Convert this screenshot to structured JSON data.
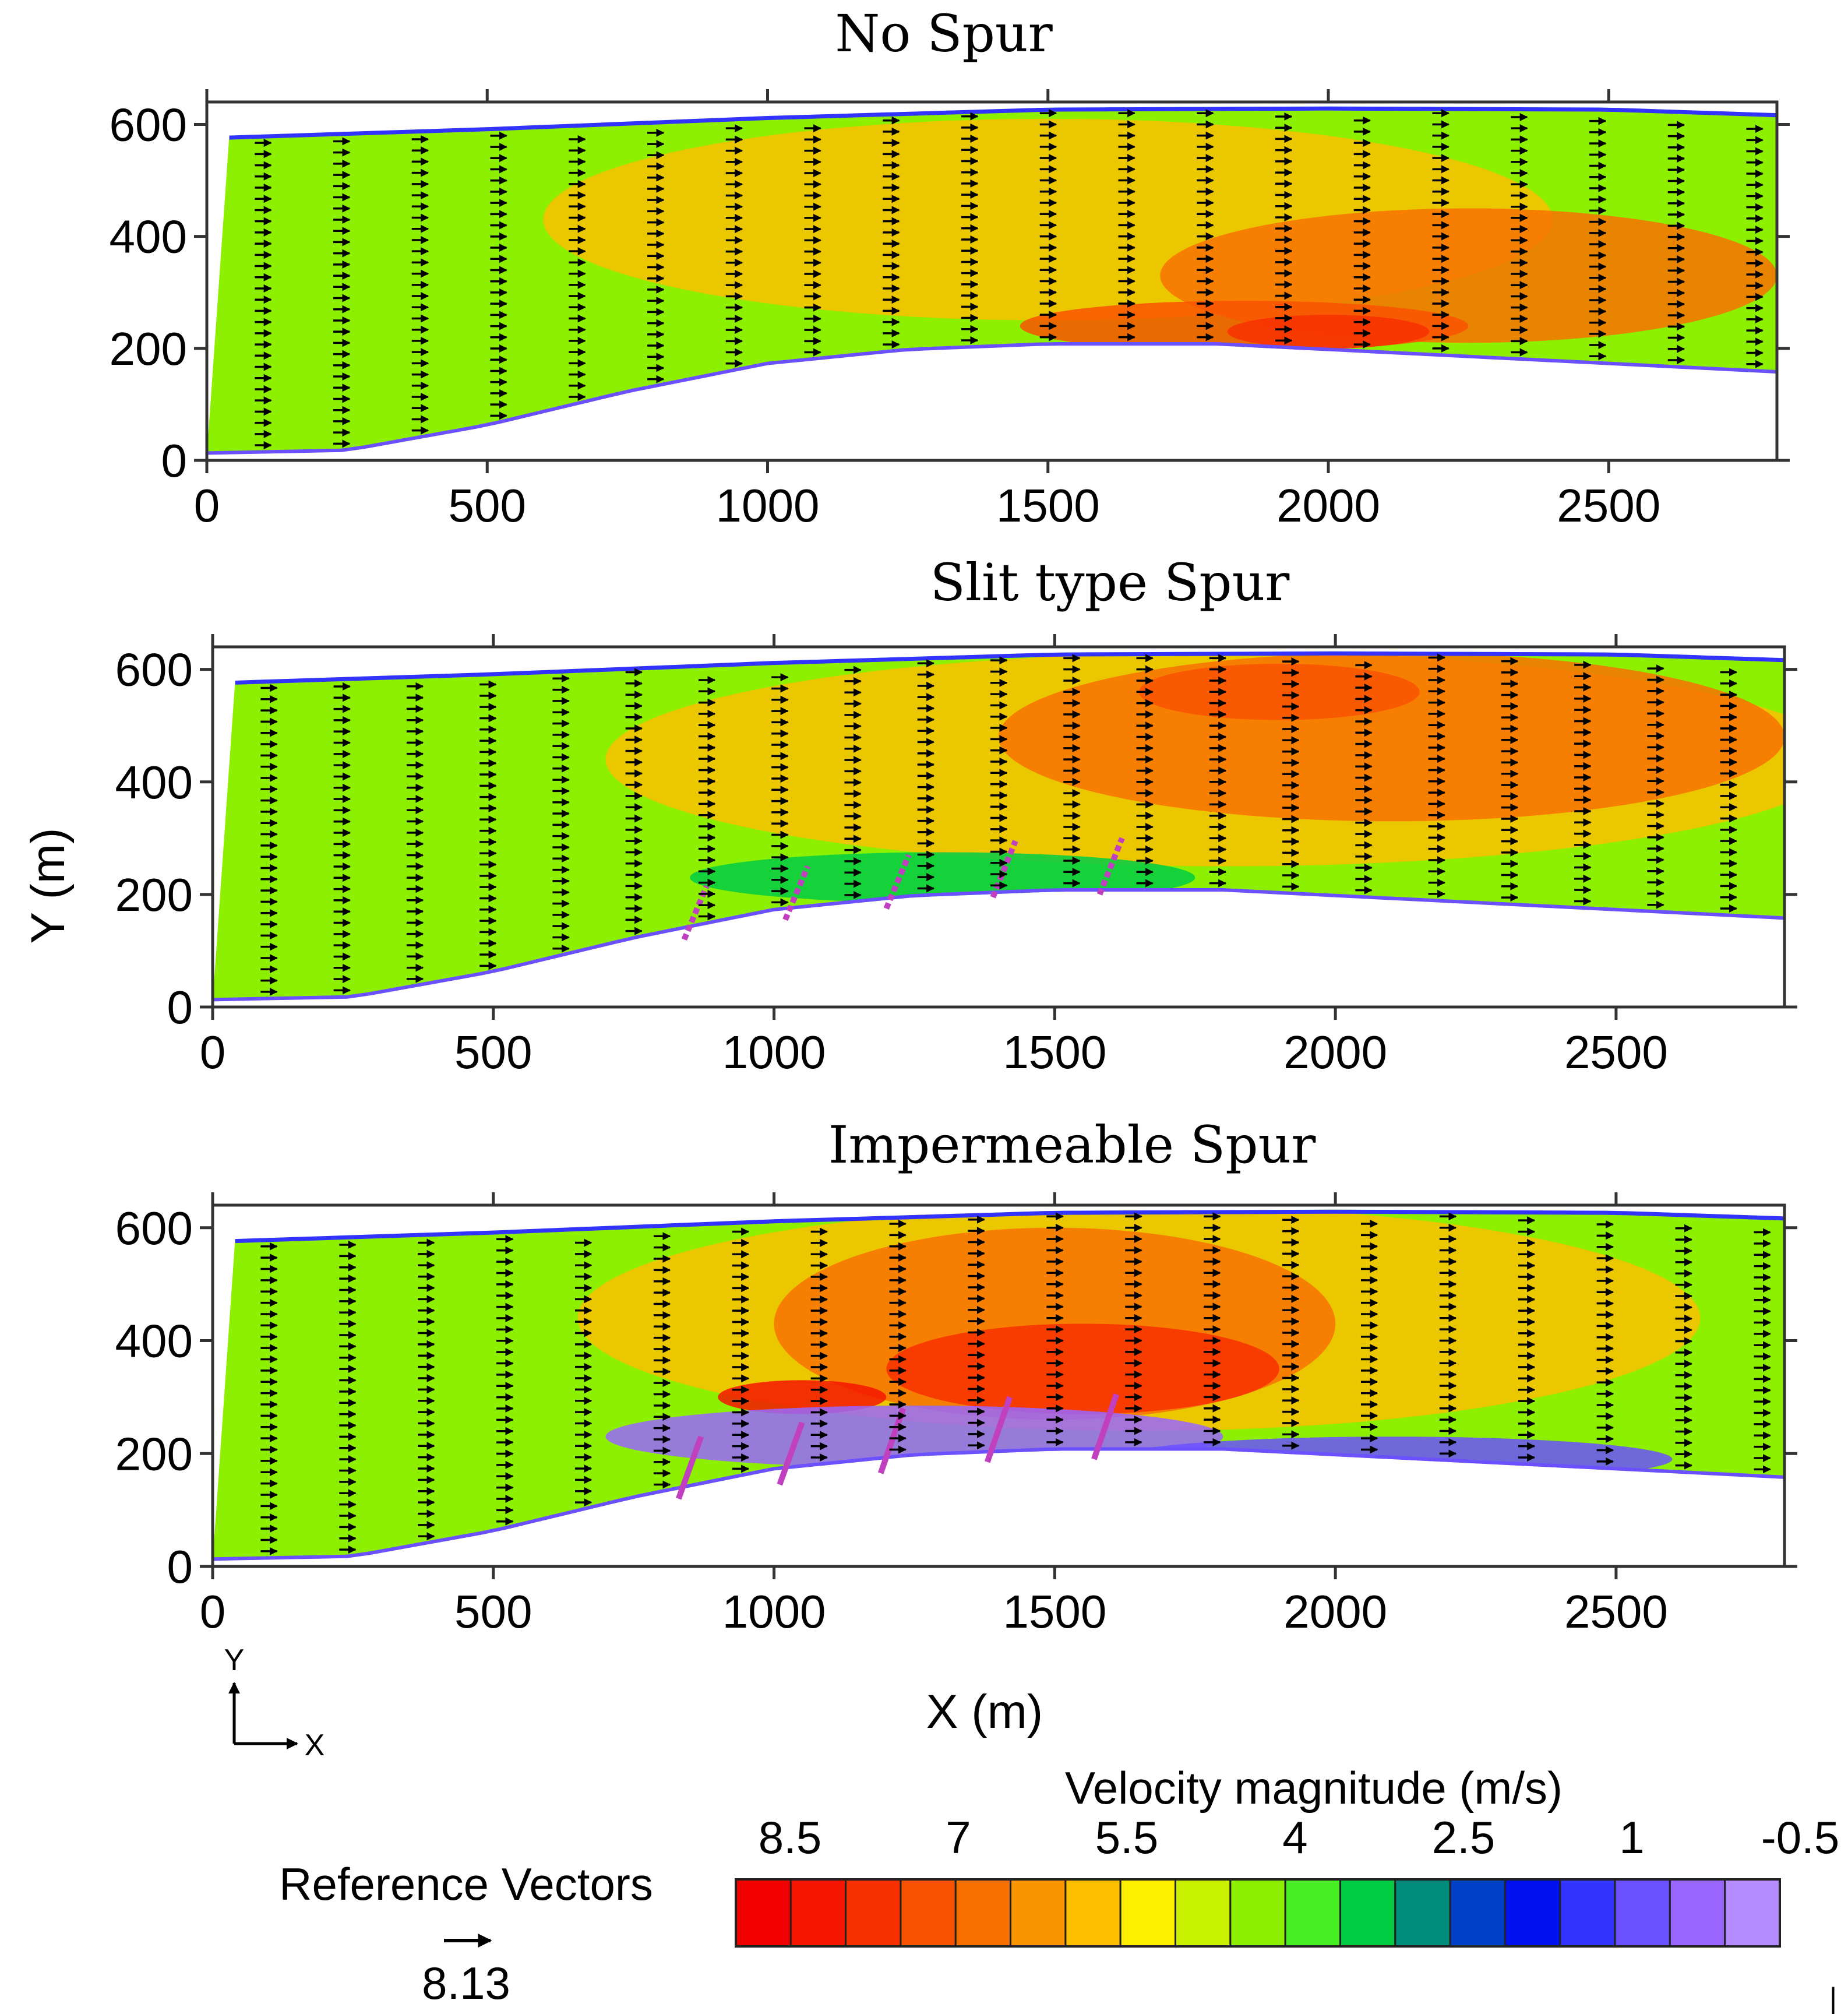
{
  "figure": {
    "y_axis_label": "Y (m)",
    "x_axis_label": "X (m)",
    "compass": {
      "y_label": "Y",
      "x_label": "X"
    },
    "colorbar": {
      "title": "Velocity magnitude (m/s)",
      "tick_labels": [
        "8.5",
        "7",
        "5.5",
        "4",
        "2.5",
        "1",
        "-0.5"
      ],
      "colors": [
        "#f20000",
        "#f51500",
        "#f83000",
        "#f95200",
        "#f87100",
        "#f99500",
        "#fcc000",
        "#fff000",
        "#c8f200",
        "#8cf000",
        "#44ee20",
        "#00cc44",
        "#008c7a",
        "#0040c8",
        "#0010f0",
        "#3333ff",
        "#6a50ff",
        "#9966ff",
        "#b48cff"
      ]
    },
    "reference_vector": {
      "label": "Reference Vectors",
      "value": "8.13"
    }
  },
  "chart_data": [
    {
      "type": "contour+vector",
      "title": "No Spur",
      "xlim": [
        0,
        2800
      ],
      "ylim": [
        0,
        640
      ],
      "xticks": [
        "0",
        "500",
        "1000",
        "1500",
        "2000",
        "2500"
      ],
      "yticks": [
        "0",
        "200",
        "400",
        "600"
      ],
      "channel_top": [
        [
          40,
          580
        ],
        [
          500,
          595
        ],
        [
          1000,
          615
        ],
        [
          1500,
          630
        ],
        [
          2000,
          632
        ],
        [
          2500,
          630
        ],
        [
          2800,
          620
        ]
      ],
      "channel_bottom": [
        [
          0,
          10
        ],
        [
          250,
          15
        ],
        [
          500,
          60
        ],
        [
          750,
          120
        ],
        [
          1000,
          170
        ],
        [
          1250,
          195
        ],
        [
          1500,
          205
        ],
        [
          1800,
          205
        ],
        [
          2100,
          190
        ],
        [
          2400,
          175
        ],
        [
          2800,
          155
        ]
      ],
      "spurs": [],
      "zones": [
        {
          "level": 5.5,
          "center": [
            1500,
            430
          ],
          "radius": [
            900,
            180
          ]
        },
        {
          "level": 6.5,
          "center": [
            2250,
            330
          ],
          "radius": [
            550,
            120
          ]
        },
        {
          "level": 7.0,
          "center": [
            1850,
            240
          ],
          "radius": [
            400,
            45
          ]
        },
        {
          "level": 7.3,
          "center": [
            2000,
            230
          ],
          "radius": [
            180,
            30
          ]
        }
      ],
      "vector_columns_x": [
        100,
        240,
        380,
        520,
        660,
        800,
        940,
        1080,
        1220,
        1360,
        1500,
        1640,
        1780,
        1920,
        2060,
        2200,
        2340,
        2480,
        2620,
        2760
      ]
    },
    {
      "type": "contour+vector",
      "title": "Slit type Spur",
      "xlim": [
        0,
        2800
      ],
      "ylim": [
        0,
        640
      ],
      "xticks": [
        "0",
        "500",
        "1000",
        "1500",
        "2000",
        "2500"
      ],
      "yticks": [
        "0",
        "200",
        "400",
        "600"
      ],
      "channel_top": [
        [
          40,
          580
        ],
        [
          500,
          595
        ],
        [
          1000,
          615
        ],
        [
          1500,
          630
        ],
        [
          2000,
          632
        ],
        [
          2500,
          630
        ],
        [
          2800,
          620
        ]
      ],
      "channel_bottom": [
        [
          0,
          10
        ],
        [
          250,
          15
        ],
        [
          500,
          60
        ],
        [
          750,
          120
        ],
        [
          1000,
          170
        ],
        [
          1250,
          195
        ],
        [
          1500,
          205
        ],
        [
          1800,
          205
        ],
        [
          2100,
          190
        ],
        [
          2400,
          175
        ],
        [
          2800,
          155
        ]
      ],
      "spurs": [
        [
          840,
          120,
          880,
          215
        ],
        [
          1020,
          155,
          1060,
          250
        ],
        [
          1200,
          175,
          1240,
          270
        ],
        [
          1390,
          195,
          1430,
          295
        ],
        [
          1580,
          200,
          1620,
          300
        ]
      ],
      "zones": [
        {
          "level": 5.5,
          "center": [
            1800,
            440
          ],
          "radius": [
            1100,
            190
          ]
        },
        {
          "level": 6.5,
          "center": [
            2100,
            480
          ],
          "radius": [
            700,
            150
          ]
        },
        {
          "level": 7.0,
          "center": [
            1900,
            560
          ],
          "radius": [
            250,
            50
          ]
        },
        {
          "level": 3.0,
          "center": [
            1300,
            230
          ],
          "radius": [
            450,
            45
          ]
        }
      ],
      "vector_columns_x": [
        100,
        230,
        360,
        490,
        620,
        750,
        880,
        1010,
        1140,
        1270,
        1400,
        1530,
        1660,
        1790,
        1920,
        2050,
        2180,
        2310,
        2440,
        2570,
        2700
      ]
    },
    {
      "type": "contour+vector",
      "title": "Impermeable Spur",
      "xlim": [
        0,
        2800
      ],
      "ylim": [
        0,
        640
      ],
      "xticks": [
        "0",
        "500",
        "1000",
        "1500",
        "2000",
        "2500"
      ],
      "yticks": [
        "0",
        "200",
        "400",
        "600"
      ],
      "channel_top": [
        [
          40,
          580
        ],
        [
          500,
          595
        ],
        [
          1000,
          615
        ],
        [
          1500,
          630
        ],
        [
          2000,
          632
        ],
        [
          2500,
          630
        ],
        [
          2800,
          620
        ]
      ],
      "channel_bottom": [
        [
          0,
          10
        ],
        [
          250,
          15
        ],
        [
          500,
          60
        ],
        [
          750,
          120
        ],
        [
          1000,
          170
        ],
        [
          1250,
          195
        ],
        [
          1500,
          205
        ],
        [
          1800,
          205
        ],
        [
          2100,
          190
        ],
        [
          2400,
          175
        ],
        [
          2800,
          155
        ]
      ],
      "spurs": [
        [
          830,
          120,
          870,
          230
        ],
        [
          1010,
          145,
          1050,
          255
        ],
        [
          1190,
          165,
          1230,
          280
        ],
        [
          1380,
          185,
          1420,
          300
        ],
        [
          1570,
          190,
          1610,
          305
        ]
      ],
      "zones": [
        {
          "level": 5.5,
          "center": [
            1650,
            440
          ],
          "radius": [
            1000,
            200
          ]
        },
        {
          "level": 6.5,
          "center": [
            1500,
            430
          ],
          "radius": [
            500,
            170
          ]
        },
        {
          "level": 7.5,
          "center": [
            1550,
            350
          ],
          "radius": [
            350,
            80
          ]
        },
        {
          "level": 8.0,
          "center": [
            1050,
            300
          ],
          "radius": [
            150,
            30
          ]
        },
        {
          "level": 0.2,
          "center": [
            1250,
            230
          ],
          "radius": [
            550,
            55
          ]
        },
        {
          "level": 0.5,
          "center": [
            2100,
            190
          ],
          "radius": [
            500,
            40
          ]
        }
      ],
      "vector_columns_x": [
        100,
        240,
        380,
        520,
        660,
        800,
        940,
        1080,
        1220,
        1360,
        1500,
        1640,
        1780,
        1920,
        2060,
        2200,
        2340,
        2480,
        2620,
        2760
      ]
    }
  ]
}
